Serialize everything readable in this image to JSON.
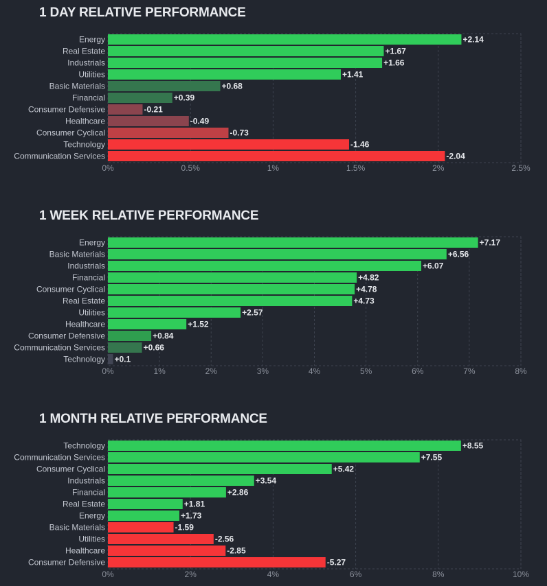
{
  "chart_data": [
    {
      "type": "bar",
      "orientation": "horizontal",
      "title": "1 DAY RELATIVE PERFORMANCE",
      "categories": [
        "Energy",
        "Real Estate",
        "Industrials",
        "Utilities",
        "Basic Materials",
        "Financial",
        "Consumer Defensive",
        "Healthcare",
        "Consumer Cyclical",
        "Technology",
        "Communication Services"
      ],
      "values": [
        2.14,
        1.67,
        1.66,
        1.41,
        0.68,
        0.39,
        -0.21,
        -0.49,
        -0.73,
        -1.46,
        -2.04
      ],
      "value_labels": [
        "+2.14",
        "+1.67",
        "+1.66",
        "+1.41",
        "+0.68",
        "+0.39",
        "-0.21",
        "-0.49",
        "-0.73",
        "-1.46",
        "-2.04"
      ],
      "bar_scale": "absolute value",
      "xlim": [
        0,
        2.5
      ],
      "xticks": [
        0,
        0.5,
        1,
        1.5,
        2,
        2.5
      ],
      "xtick_labels": [
        "0%",
        "0.5%",
        "1%",
        "1.5%",
        "2%",
        "2.5%"
      ],
      "grid": true
    },
    {
      "type": "bar",
      "orientation": "horizontal",
      "title": "1 WEEK RELATIVE PERFORMANCE",
      "categories": [
        "Energy",
        "Basic Materials",
        "Industrials",
        "Financial",
        "Consumer Cyclical",
        "Real Estate",
        "Utilities",
        "Healthcare",
        "Consumer Defensive",
        "Communication Services",
        "Technology"
      ],
      "values": [
        7.17,
        6.56,
        6.07,
        4.82,
        4.78,
        4.73,
        2.57,
        1.52,
        0.84,
        0.66,
        0.1
      ],
      "value_labels": [
        "+7.17",
        "+6.56",
        "+6.07",
        "+4.82",
        "+4.78",
        "+4.73",
        "+2.57",
        "+1.52",
        "+0.84",
        "+0.66",
        "+0.1"
      ],
      "bar_scale": "absolute value",
      "xlim": [
        0,
        8
      ],
      "xticks": [
        0,
        1,
        2,
        3,
        4,
        5,
        6,
        7,
        8
      ],
      "xtick_labels": [
        "0%",
        "1%",
        "2%",
        "3%",
        "4%",
        "5%",
        "6%",
        "7%",
        "8%"
      ],
      "grid": true
    },
    {
      "type": "bar",
      "orientation": "horizontal",
      "title": "1 MONTH RELATIVE PERFORMANCE",
      "categories": [
        "Technology",
        "Communication Services",
        "Consumer Cyclical",
        "Industrials",
        "Financial",
        "Real Estate",
        "Energy",
        "Basic Materials",
        "Utilities",
        "Healthcare",
        "Consumer Defensive"
      ],
      "values": [
        8.55,
        7.55,
        5.42,
        3.54,
        2.86,
        1.81,
        1.73,
        -1.59,
        -2.56,
        -2.85,
        -5.27
      ],
      "value_labels": [
        "+8.55",
        "+7.55",
        "+5.42",
        "+3.54",
        "+2.86",
        "+1.81",
        "+1.73",
        "-1.59",
        "-2.56",
        "-2.85",
        "-5.27"
      ],
      "bar_scale": "absolute value",
      "xlim": [
        0,
        10
      ],
      "xticks": [
        0,
        2,
        4,
        6,
        8,
        10
      ],
      "xtick_labels": [
        "0%",
        "2%",
        "4%",
        "6%",
        "8%",
        "10%"
      ],
      "grid": true
    }
  ],
  "colors": {
    "background": "#22262f",
    "positive_strong": "#30cc5a",
    "positive_mid": "#2f9e4f",
    "positive_weak": "#35764e",
    "neutral": "#414554",
    "negative_weak": "#8b444e",
    "negative_mid": "#bf4045",
    "negative_strong": "#f63538"
  }
}
